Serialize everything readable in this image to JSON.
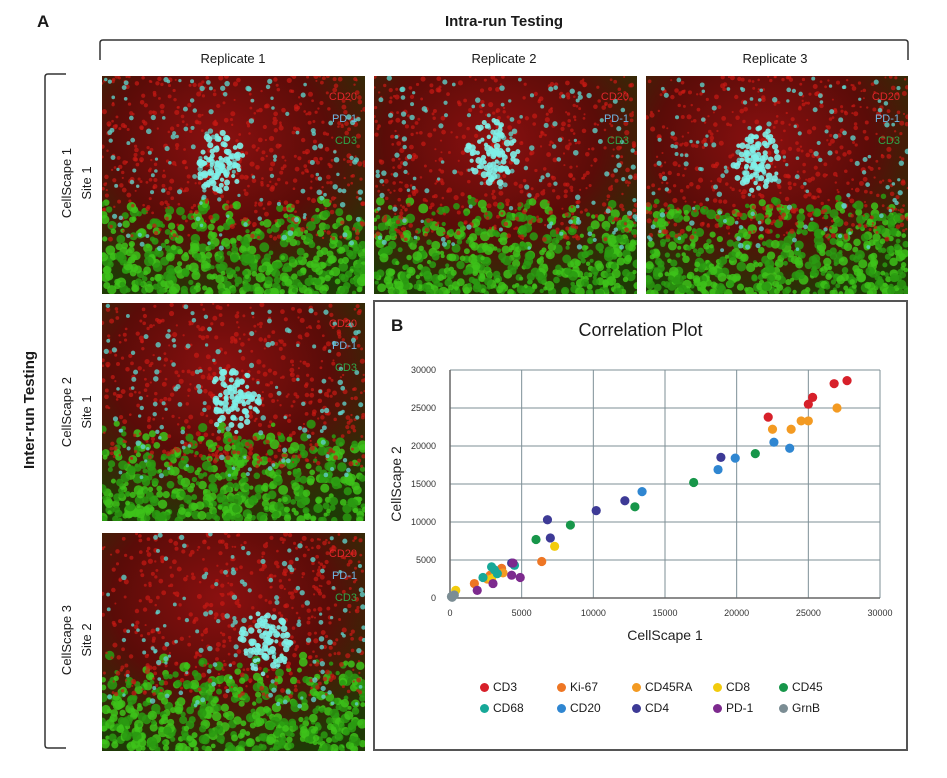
{
  "panel_a": {
    "letter": "A",
    "intra_title": "Intra-run Testing",
    "inter_title": "Inter-run Testing",
    "replicates": [
      "Replicate 1",
      "Replicate 2",
      "Replicate 3"
    ],
    "rows": [
      {
        "line1": "CellScape 1",
        "line2": "Site 1"
      },
      {
        "line1": "CellScape 2",
        "line2": "Site 1"
      },
      {
        "line1": "CellScape 3",
        "line2": "Site 2"
      }
    ],
    "stain_legend": [
      {
        "label": "CD20",
        "color": "#e0262b"
      },
      {
        "label": "PD-1",
        "color": "#6fb8e6"
      },
      {
        "label": "CD3",
        "color": "#2fa64a"
      }
    ]
  },
  "panel_b": {
    "letter": "B"
  },
  "chart_data": {
    "type": "scatter",
    "title": "Correlation Plot",
    "xlabel": "CellScape 1",
    "ylabel": "CellScape 2",
    "xlim": [
      0,
      30000
    ],
    "ylim": [
      0,
      30000
    ],
    "xticks": [
      0,
      5000,
      10000,
      15000,
      20000,
      25000,
      30000
    ],
    "yticks": [
      0,
      5000,
      10000,
      15000,
      20000,
      25000,
      30000
    ],
    "xtick_labels": [
      "0",
      "5000",
      "10000",
      "15000",
      "20000",
      "25000",
      "30000"
    ],
    "ytick_labels": [
      "0",
      "5000",
      "10000",
      "15000",
      "20000",
      "25000",
      "30000"
    ],
    "grid": true,
    "legend_position": "bottom",
    "series": [
      {
        "name": "CD3",
        "color": "#d7202a",
        "points": [
          [
            22200,
            23800
          ],
          [
            25000,
            25500
          ],
          [
            25300,
            26400
          ],
          [
            26800,
            28200
          ],
          [
            27700,
            28600
          ]
        ]
      },
      {
        "name": "Ki-67",
        "color": "#ee7624",
        "points": [
          [
            1700,
            1900
          ],
          [
            6400,
            4800
          ],
          [
            3600,
            3900
          ],
          [
            2800,
            3000
          ]
        ]
      },
      {
        "name": "CD45RA",
        "color": "#f39a22",
        "points": [
          [
            22500,
            22200
          ],
          [
            23800,
            22200
          ],
          [
            24500,
            23300
          ],
          [
            25000,
            23300
          ],
          [
            27000,
            25000
          ],
          [
            3700,
            3300
          ],
          [
            2600,
            2500
          ]
        ]
      },
      {
        "name": "CD8",
        "color": "#f2cb0d",
        "points": [
          [
            400,
            1000
          ],
          [
            7300,
            6800
          ],
          [
            2900,
            2500
          ],
          [
            3200,
            3200
          ]
        ]
      },
      {
        "name": "CD45",
        "color": "#17964a",
        "points": [
          [
            21300,
            19000
          ],
          [
            17000,
            15200
          ],
          [
            12900,
            12000
          ],
          [
            8400,
            9600
          ],
          [
            6000,
            7700
          ]
        ]
      },
      {
        "name": "CD68",
        "color": "#17a898",
        "points": [
          [
            2900,
            4100
          ],
          [
            4500,
            4300
          ],
          [
            3100,
            3700
          ],
          [
            2300,
            2700
          ],
          [
            3300,
            3200
          ]
        ]
      },
      {
        "name": "CD20",
        "color": "#2f86d1",
        "points": [
          [
            22600,
            20500
          ],
          [
            23700,
            19700
          ],
          [
            19900,
            18400
          ],
          [
            18700,
            16900
          ],
          [
            13400,
            14000
          ]
        ]
      },
      {
        "name": "CD4",
        "color": "#3d3a96",
        "points": [
          [
            18900,
            18500
          ],
          [
            12200,
            12800
          ],
          [
            10200,
            11500
          ],
          [
            6800,
            10300
          ],
          [
            7000,
            7900
          ],
          [
            4300,
            4600
          ]
        ]
      },
      {
        "name": "PD-1",
        "color": "#7d2a8e",
        "points": [
          [
            4300,
            3000
          ],
          [
            4900,
            2700
          ],
          [
            3000,
            1900
          ],
          [
            1900,
            1000
          ],
          [
            4400,
            4600
          ]
        ]
      },
      {
        "name": "GrnB",
        "color": "#7b8d94",
        "points": [
          [
            100,
            200
          ],
          [
            200,
            300
          ],
          [
            300,
            400
          ],
          [
            150,
            100
          ]
        ]
      }
    ]
  }
}
